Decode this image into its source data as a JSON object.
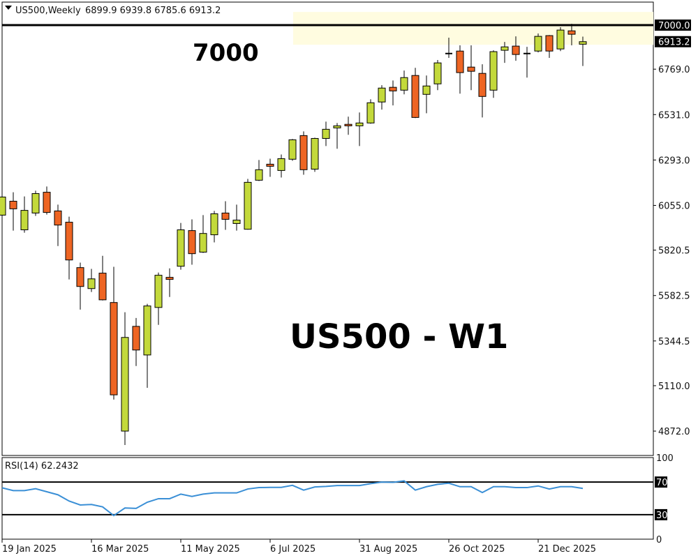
{
  "header": {
    "symbol_timeframe": "US500,Weekly",
    "ohlc": "6899.9 6939.8 6785.6 6913.2"
  },
  "colors": {
    "bull": "#C3D93B",
    "bear": "#EE6523",
    "rsi_line": "#3A8FD6",
    "zone": "#FFFCE0",
    "level_line": "#000000"
  },
  "chart_data": [
    {
      "type": "candlestick",
      "title": "US500,Weekly",
      "ylim": [
        4800,
        7070
      ],
      "ytick_labels": [
        "6769.0",
        "6531.0",
        "6293.0",
        "6055.0",
        "5820.5",
        "5582.5",
        "5344.5",
        "5110.0",
        "4872.0"
      ],
      "yticks": [
        6769.0,
        6531.0,
        6293.0,
        6055.0,
        5820.5,
        5582.5,
        5344.5,
        5110.0,
        4872.0
      ],
      "price_labels": [
        {
          "text": "7000.0",
          "value": 7000.0
        },
        {
          "text": "6913.2",
          "value": 6913.2
        }
      ],
      "xtick_labels": [
        {
          "text": "19 Jan 2025",
          "index": 0
        },
        {
          "text": "16 Mar 2025",
          "index": 8
        },
        {
          "text": "11 May 2025",
          "index": 16
        },
        {
          "text": "6 Jul 2025",
          "index": 24
        },
        {
          "text": "31 Aug 2025",
          "index": 32
        },
        {
          "text": "26 Oct 2025",
          "index": 40
        },
        {
          "text": "21 Dec 2025",
          "index": 48
        }
      ],
      "horizontal_level": 7000,
      "zone": [
        6897,
        7069
      ],
      "annotations": [
        "7000",
        "US500 - W1"
      ],
      "ohlc": [
        [
          6004,
          6135,
          5960,
          6099
        ],
        [
          6077,
          6124,
          5923,
          6037
        ],
        [
          5927,
          6102,
          5912,
          6029
        ],
        [
          6015,
          6132,
          6000,
          6117
        ],
        [
          6124,
          6154,
          6007,
          6018
        ],
        [
          6026,
          6059,
          5842,
          5952
        ],
        [
          5967,
          5996,
          5667,
          5769
        ],
        [
          5729,
          5755,
          5509,
          5630
        ],
        [
          5619,
          5722,
          5601,
          5670
        ],
        [
          5700,
          5791,
          5557,
          5560
        ],
        [
          5546,
          5733,
          5037,
          5062
        ],
        [
          4872,
          5495,
          4799,
          5363
        ],
        [
          5421,
          5465,
          5213,
          5297
        ],
        [
          5271,
          5539,
          5099,
          5528
        ],
        [
          5520,
          5703,
          5429,
          5689
        ],
        [
          5678,
          5725,
          5575,
          5667
        ],
        [
          5736,
          5963,
          5718,
          5927
        ],
        [
          5923,
          5982,
          5744,
          5802
        ],
        [
          5810,
          6004,
          5806,
          5908
        ],
        [
          5901,
          6026,
          5861,
          6011
        ],
        [
          6015,
          6077,
          5927,
          5982
        ],
        [
          5960,
          6059,
          5923,
          5978
        ],
        [
          5930,
          6194,
          5928,
          6176
        ],
        [
          6187,
          6293,
          6183,
          6242
        ],
        [
          6271,
          6300,
          6205,
          6260
        ],
        [
          6238,
          6322,
          6201,
          6300
        ],
        [
          6297,
          6403,
          6289,
          6399
        ],
        [
          6421,
          6443,
          6216,
          6242
        ],
        [
          6245,
          6410,
          6231,
          6406
        ],
        [
          6406,
          6494,
          6366,
          6454
        ],
        [
          6461,
          6487,
          6352,
          6472
        ],
        [
          6480,
          6520,
          6425,
          6472
        ],
        [
          6472,
          6542,
          6366,
          6487
        ],
        [
          6487,
          6611,
          6483,
          6593
        ],
        [
          6597,
          6685,
          6557,
          6670
        ],
        [
          6674,
          6710,
          6579,
          6655
        ],
        [
          6659,
          6762,
          6637,
          6725
        ],
        [
          6736,
          6776,
          6513,
          6516
        ],
        [
          6637,
          6736,
          6538,
          6681
        ],
        [
          6692,
          6817,
          6659,
          6802
        ],
        [
          6849,
          6934,
          6828,
          6851
        ],
        [
          6864,
          6894,
          6641,
          6751
        ],
        [
          6780,
          6894,
          6659,
          6758
        ],
        [
          6747,
          6795,
          6516,
          6626
        ],
        [
          6659,
          6868,
          6619,
          6861
        ],
        [
          6868,
          6912,
          6802,
          6886
        ],
        [
          6890,
          6941,
          6813,
          6846
        ],
        [
          6849,
          6886,
          6725,
          6851
        ],
        [
          6864,
          6956,
          6857,
          6941
        ],
        [
          6945,
          6948,
          6828,
          6864
        ],
        [
          6875,
          6989,
          6864,
          6974
        ],
        [
          6970,
          7007,
          6894,
          6952
        ],
        [
          6899.9,
          6939.8,
          6785.6,
          6913.2
        ]
      ]
    },
    {
      "type": "line",
      "title": "RSI(14) 62.2432",
      "ylim": [
        0,
        100
      ],
      "ytick_labels": [
        "100",
        "70",
        "30",
        "0"
      ],
      "yticks": [
        100,
        70,
        30,
        0
      ],
      "levels": [
        70,
        30
      ],
      "values": [
        62.9,
        59.5,
        59.5,
        61.8,
        58.1,
        54.4,
        46.7,
        41.9,
        42.5,
        39.6,
        28.9,
        38.2,
        37.7,
        45.3,
        49.6,
        49.6,
        55.2,
        52.4,
        55.2,
        56.7,
        56.7,
        56.7,
        61.5,
        63.2,
        63.5,
        63.5,
        66.0,
        60.1,
        64.0,
        64.6,
        65.7,
        65.7,
        65.7,
        68.0,
        70.0,
        69.7,
        71.4,
        60.1,
        64.3,
        67.2,
        68.6,
        64.3,
        64.3,
        57.2,
        64.3,
        64.3,
        63.2,
        63.2,
        65.2,
        61.5,
        64.3,
        64.3,
        62.2
      ]
    }
  ]
}
